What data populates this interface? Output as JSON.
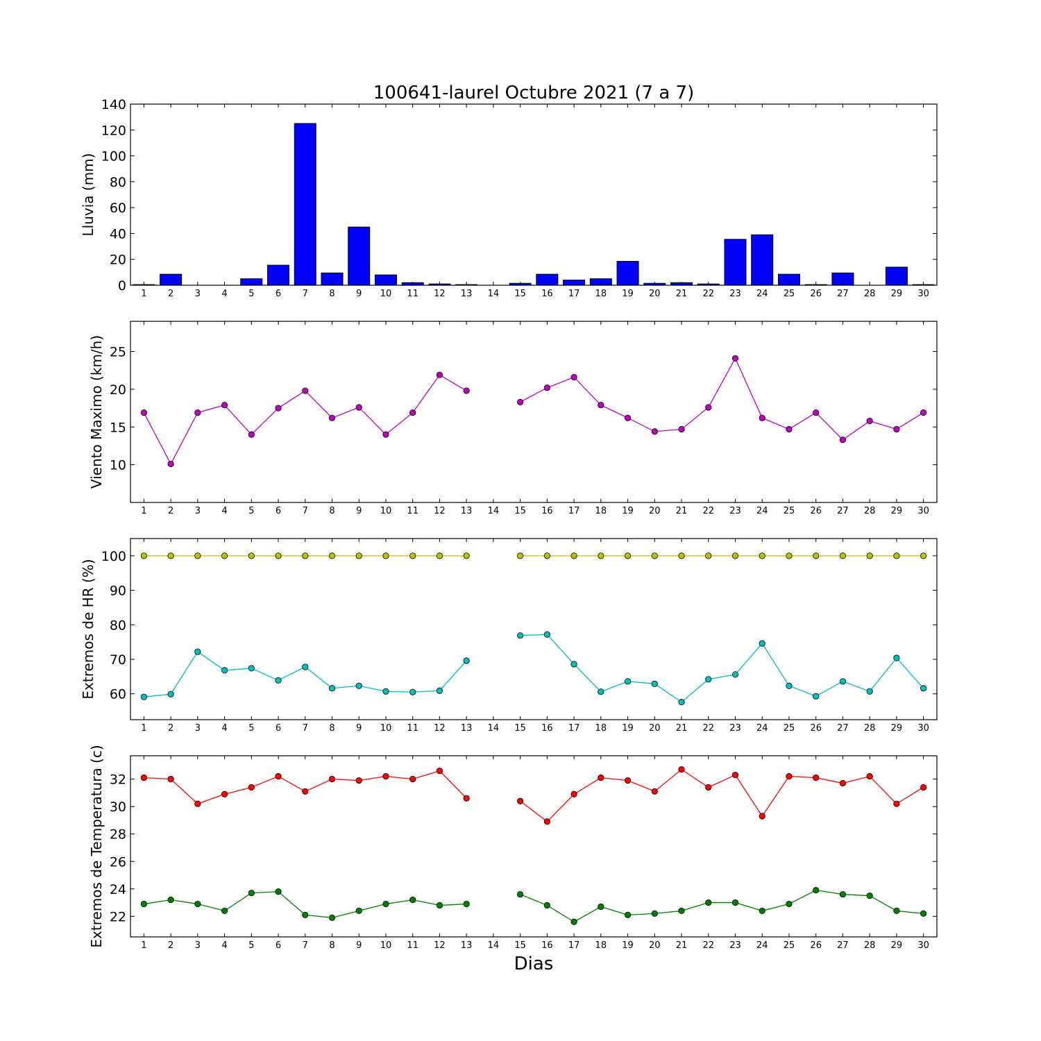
{
  "title": "100641-laurel Octubre 2021  (7 a 7)",
  "xlabel": "Dias",
  "days": [
    1,
    2,
    3,
    4,
    5,
    6,
    7,
    8,
    9,
    10,
    11,
    12,
    13,
    14,
    15,
    16,
    17,
    18,
    19,
    20,
    21,
    22,
    23,
    24,
    25,
    26,
    27,
    28,
    29,
    30
  ],
  "chart_data": [
    {
      "type": "bar",
      "ylabel": "Lluvia (mm)",
      "ylim": [
        0,
        140
      ],
      "yticks": [
        0,
        20,
        40,
        60,
        80,
        100,
        120,
        140
      ],
      "series": [
        {
          "color": "#0000ff",
          "values": [
            0.5,
            8.5,
            0,
            0,
            5,
            15.5,
            125,
            9.5,
            45,
            8,
            2,
            1,
            0.5,
            0,
            1.5,
            8.5,
            4,
            5,
            18.5,
            1.5,
            2,
            1,
            35.5,
            39,
            8.5,
            0.5,
            9.5,
            0,
            14,
            0.5
          ]
        }
      ]
    },
    {
      "type": "line",
      "ylabel": "Viento Maximo (km/h)",
      "ylim": [
        5,
        29
      ],
      "yticks": [
        10,
        15,
        20,
        25
      ],
      "series": [
        {
          "color": "#c000c0",
          "values": [
            16.9,
            10.1,
            16.9,
            17.9,
            14.0,
            17.5,
            19.8,
            16.2,
            17.6,
            14.0,
            16.9,
            21.9,
            19.8,
            null,
            18.3,
            20.2,
            21.6,
            17.9,
            16.2,
            14.4,
            14.7,
            17.6,
            24.1,
            16.2,
            14.7,
            16.9,
            13.3,
            15.8,
            14.7,
            16.9
          ]
        }
      ]
    },
    {
      "type": "line",
      "ylabel": "Extremos de HR (%)",
      "ylim": [
        52.5,
        105
      ],
      "yticks": [
        60,
        70,
        80,
        90,
        100
      ],
      "series": [
        {
          "color": "#bfbf00",
          "values": [
            100,
            100,
            100,
            100,
            100,
            100,
            100,
            100,
            100,
            100,
            100,
            100,
            100,
            null,
            100,
            100,
            100,
            100,
            100,
            100,
            100,
            100,
            100,
            100,
            100,
            100,
            100,
            100,
            100,
            100
          ]
        },
        {
          "color": "#00bfbf",
          "values": [
            59.1,
            59.9,
            72.2,
            66.8,
            67.4,
            63.9,
            67.8,
            61.6,
            62.3,
            60.7,
            60.5,
            60.9,
            69.6,
            null,
            76.9,
            77.2,
            68.6,
            60.6,
            63.6,
            62.9,
            57.6,
            64.2,
            65.6,
            74.6,
            62.3,
            59.3,
            63.6,
            60.7,
            70.4,
            61.6
          ]
        }
      ]
    },
    {
      "type": "line",
      "ylabel": "Extremos de Temperatura (c)",
      "ylim": [
        20.5,
        33.7
      ],
      "yticks": [
        22,
        24,
        26,
        28,
        30,
        32
      ],
      "series": [
        {
          "color": "#ff0000",
          "values": [
            32.1,
            32.0,
            30.2,
            30.9,
            31.4,
            32.2,
            31.1,
            32.0,
            31.9,
            32.2,
            32.0,
            32.6,
            30.6,
            null,
            30.4,
            28.9,
            30.9,
            32.1,
            31.9,
            31.1,
            32.7,
            31.4,
            32.3,
            29.3,
            32.2,
            32.1,
            31.7,
            32.2,
            30.2,
            31.4
          ]
        },
        {
          "color": "#008000",
          "values": [
            22.9,
            23.2,
            22.9,
            22.4,
            23.7,
            23.8,
            22.1,
            21.9,
            22.4,
            22.9,
            23.2,
            22.8,
            22.9,
            null,
            23.6,
            22.8,
            21.6,
            22.7,
            22.1,
            22.2,
            22.4,
            23.0,
            23.0,
            22.4,
            22.9,
            23.9,
            23.6,
            23.5,
            22.4,
            22.2
          ]
        }
      ]
    }
  ]
}
